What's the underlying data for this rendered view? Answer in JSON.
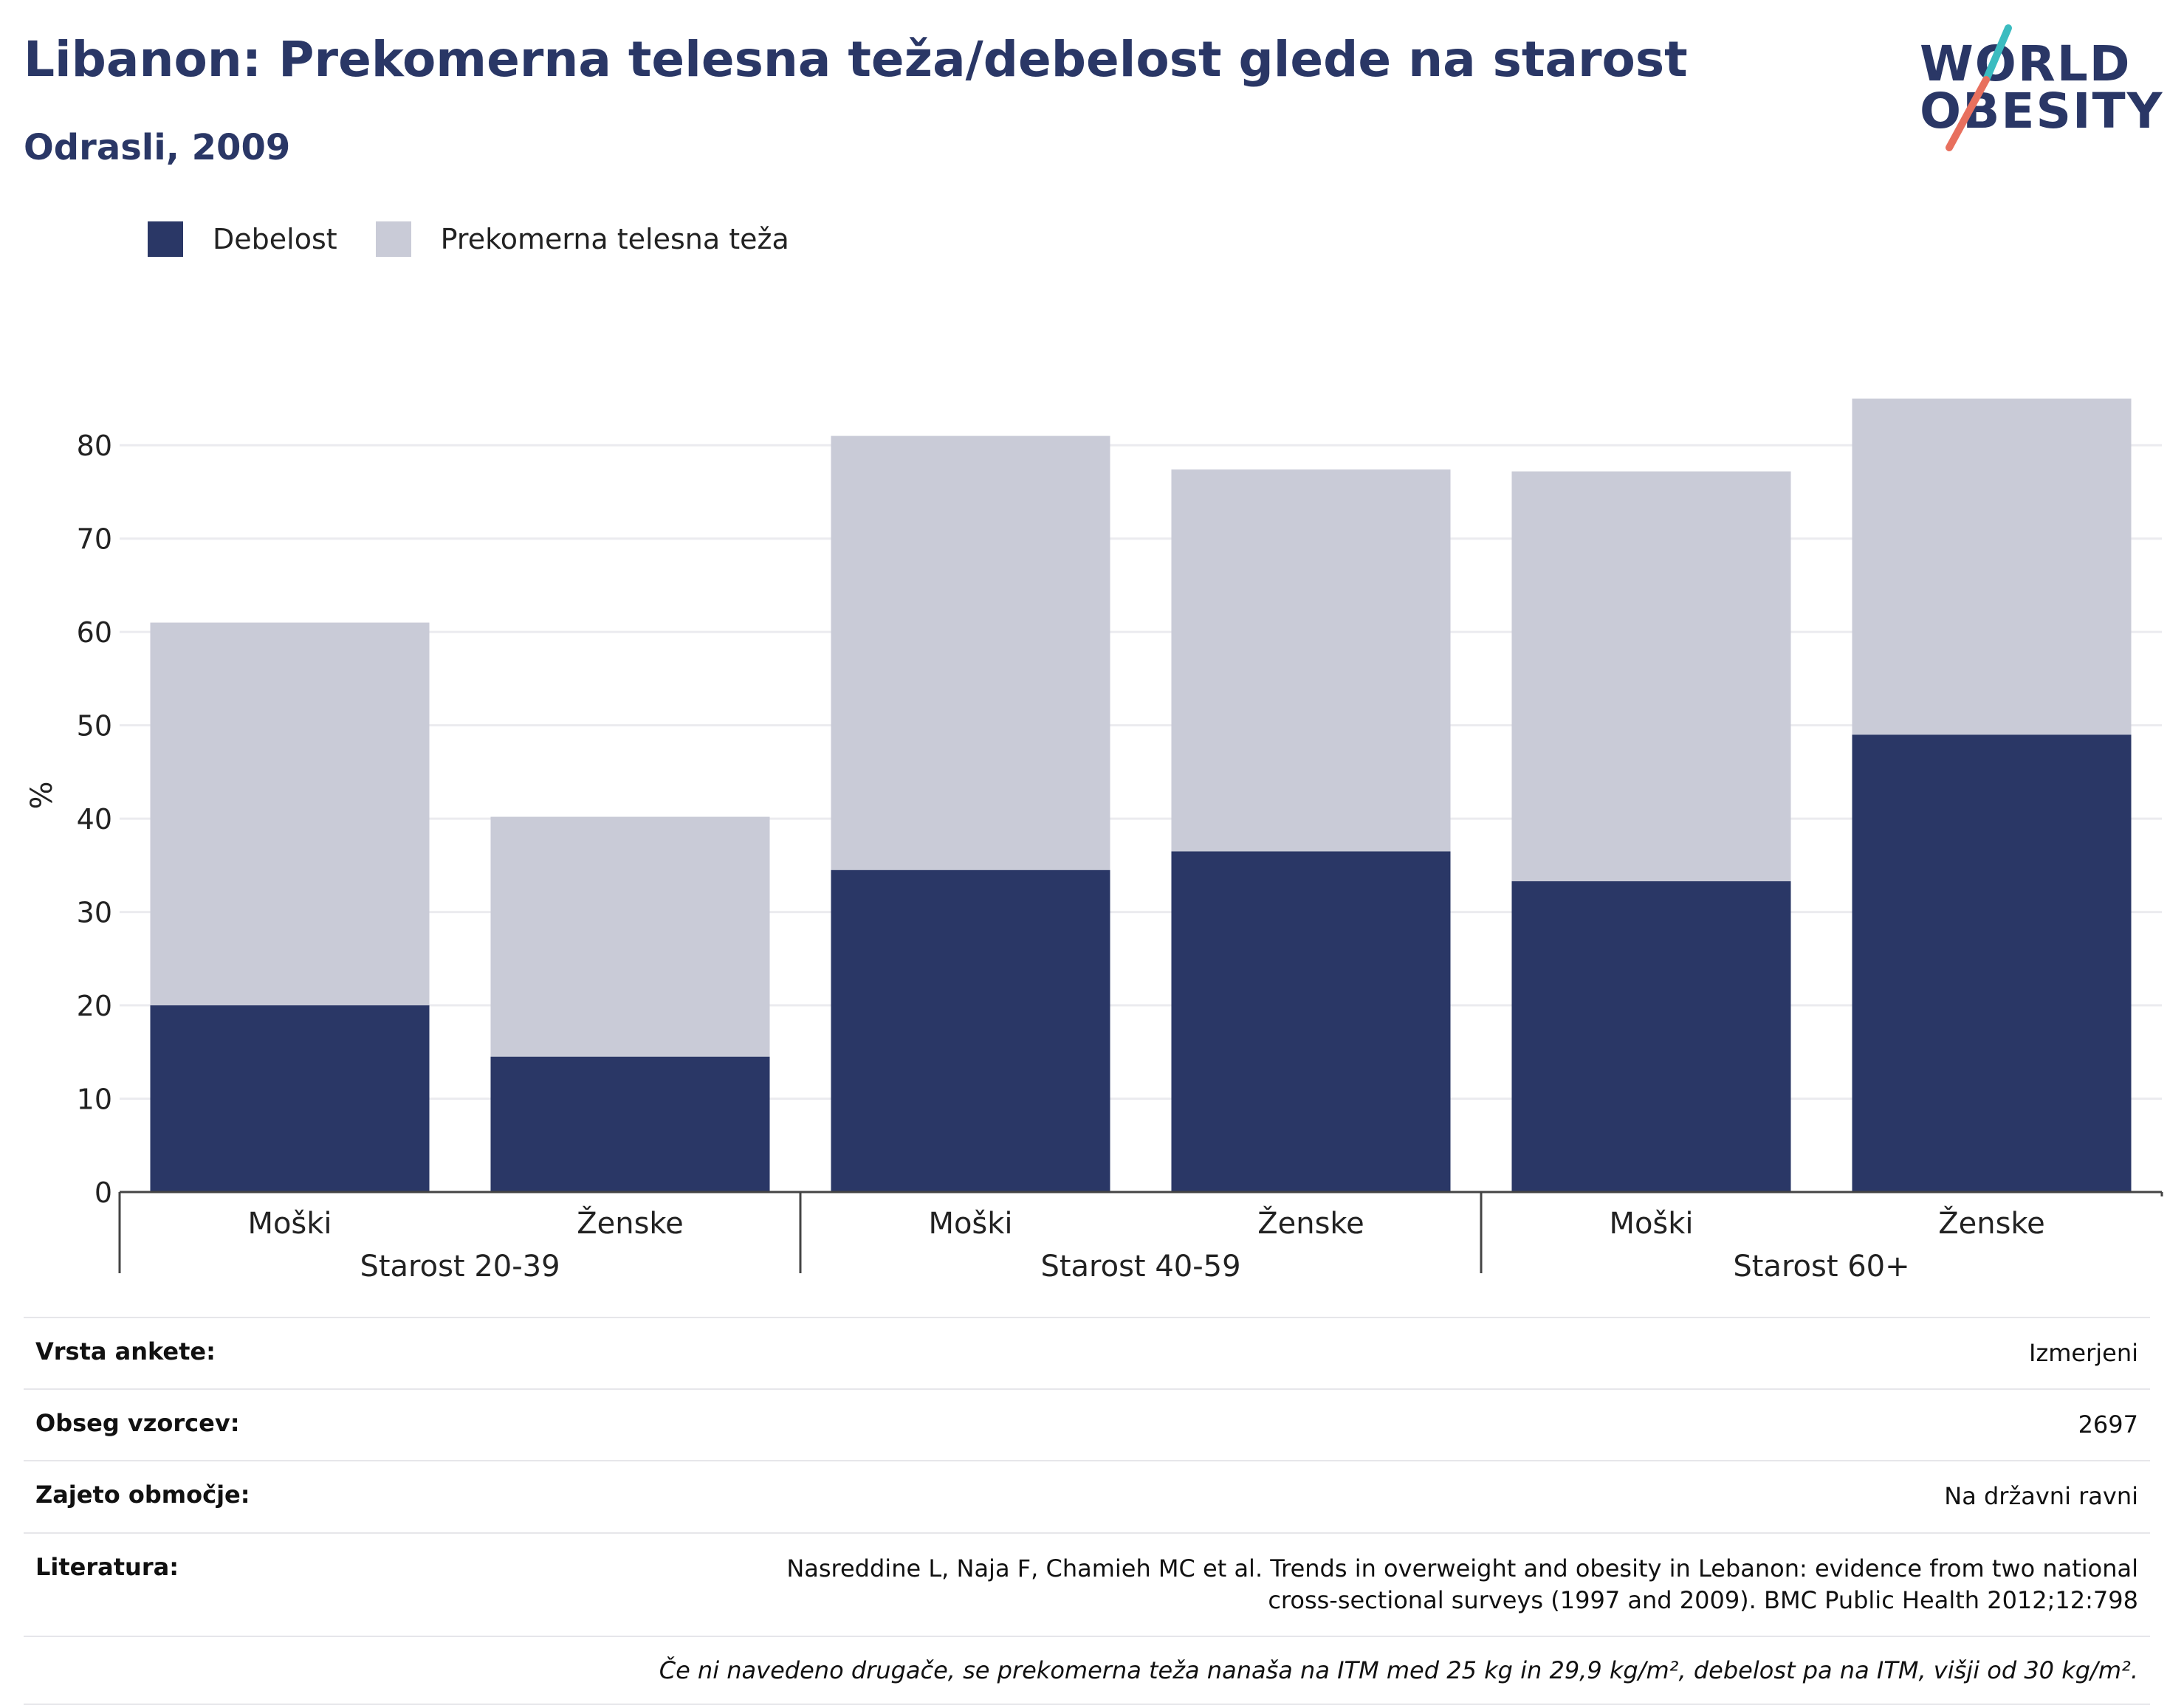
{
  "header": {
    "title": "Libanon: Prekomerna telesna teža/debelost glede na starost",
    "subtitle": "Odrasli, 2009"
  },
  "logo": {
    "line1": "WORLD",
    "line2": "OBESITY",
    "colors": {
      "text": "#2a3766",
      "slash_top": "#3bbcc0",
      "slash_bottom": "#e8705e"
    }
  },
  "legend": [
    {
      "label": "Debelost",
      "color": "#2a3766"
    },
    {
      "label": "Prekomerna telesna teža",
      "color": "#c9cbd7"
    }
  ],
  "chart_data": {
    "type": "bar",
    "stacked": true,
    "ylabel": "%",
    "xlabel": "",
    "ylim": [
      0,
      85
    ],
    "yticks": [
      0,
      10,
      20,
      30,
      40,
      50,
      60,
      70,
      80
    ],
    "grid": true,
    "legend_position": "top-left",
    "groups": [
      {
        "label": "Starost 20-39",
        "categories": [
          "Moški",
          "Ženske"
        ]
      },
      {
        "label": "Starost 40-59",
        "categories": [
          "Moški",
          "Ženske"
        ]
      },
      {
        "label": "Starost 60+",
        "categories": [
          "Moški",
          "Ženske"
        ]
      }
    ],
    "categories": [
      "Moški",
      "Ženske",
      "Moški",
      "Ženske",
      "Moški",
      "Ženske"
    ],
    "series": [
      {
        "name": "Debelost",
        "color": "#2a3766",
        "values": [
          20.0,
          14.5,
          34.5,
          36.5,
          33.3,
          49.0
        ]
      },
      {
        "name": "Prekomerna telesna teža",
        "color": "#c9cbd7",
        "values": [
          41.0,
          25.7,
          46.5,
          40.9,
          43.9,
          36.0
        ]
      }
    ]
  },
  "info": {
    "rows": [
      {
        "key": "Vrsta ankete:",
        "value": "Izmerjeni"
      },
      {
        "key": "Obseg vzorcev:",
        "value": "2697"
      },
      {
        "key": "Zajeto območje:",
        "value": "Na državni ravni"
      },
      {
        "key": "Literatura:",
        "value": "Nasreddine L, Naja F, Chamieh MC et al. Trends in overweight and obesity in Lebanon: evidence from two national cross-sectional surveys (1997 and 2009). BMC Public Health 2012;12:798"
      }
    ],
    "note": "Če ni navedeno drugače, se prekomerna teža nanaša na ITM med 25 kg in 29,9 kg/m², debelost pa na ITM, višji od 30 kg/m²."
  }
}
